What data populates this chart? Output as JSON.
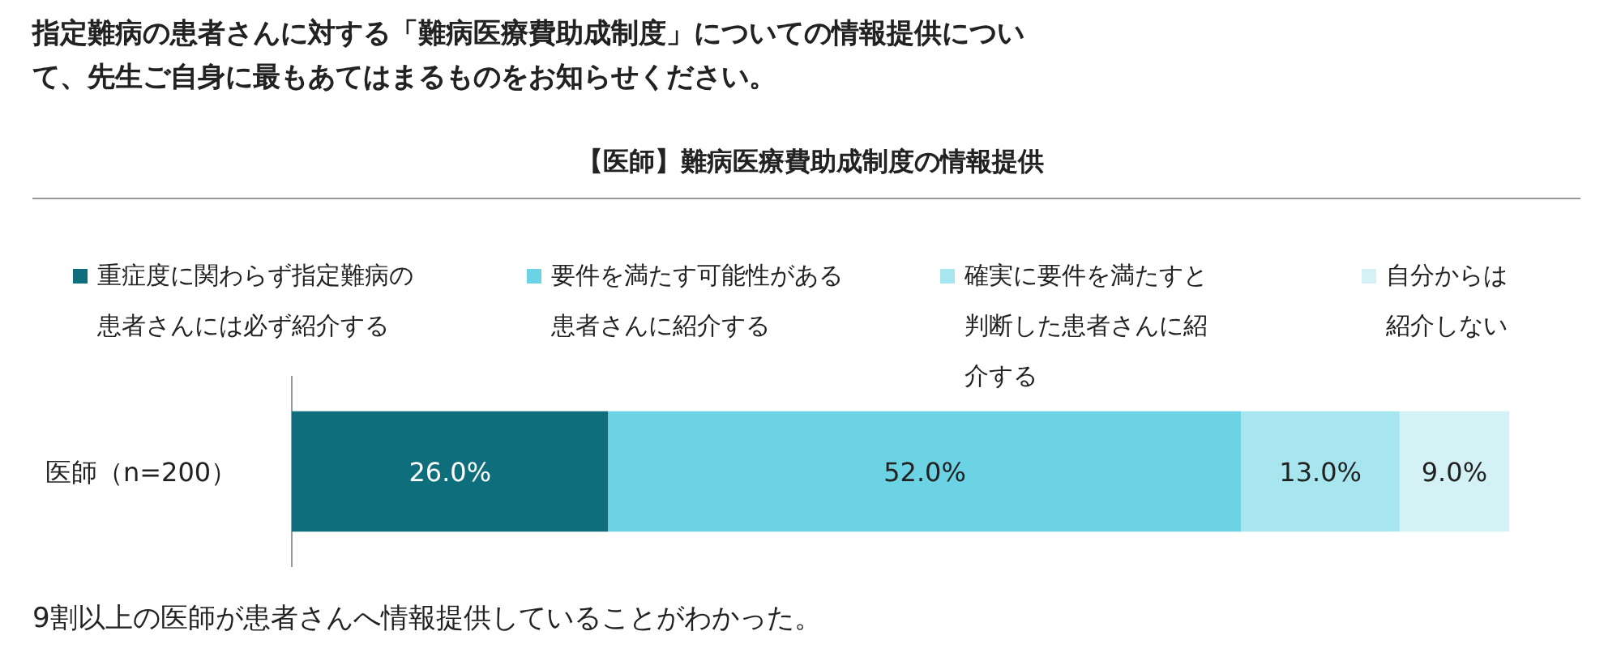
{
  "chart_data": {
    "type": "bar",
    "orientation": "horizontal",
    "stacked": true,
    "title": "指定難病の患者さんに対する「難病医療費助成制度」についての情報提供について、先生ご自身に最もあてはまるものをお知らせください。",
    "subtitle": "【医師】難病医療費助成制度の情報提供",
    "categories": [
      "医師（n=200）"
    ],
    "series": [
      {
        "name": "重症度に関わらず指定難病の患者さんには必ず紹介する",
        "color": "#0e6e7c",
        "values": [
          26
        ],
        "value_labels": [
          "26.0%"
        ]
      },
      {
        "name": "要件を満たす可能性がある患者さんに紹介する",
        "color": "#6bd3e3",
        "values": [
          52
        ],
        "value_labels": [
          "52.0%"
        ]
      },
      {
        "name": "確実に要件を満たすと判断した患者さんに紹介する",
        "color": "#a7e6ee",
        "values": [
          13
        ],
        "value_labels": [
          "13.0%"
        ]
      },
      {
        "name": "自分からは紹介しない",
        "color": "#d4f2f6",
        "values": [
          9
        ],
        "value_labels": [
          "9.0%"
        ]
      }
    ],
    "legend": "top",
    "annotations": [
      "9割以上の医師が患者さんへ情報提供していることがわかった。"
    ]
  }
}
